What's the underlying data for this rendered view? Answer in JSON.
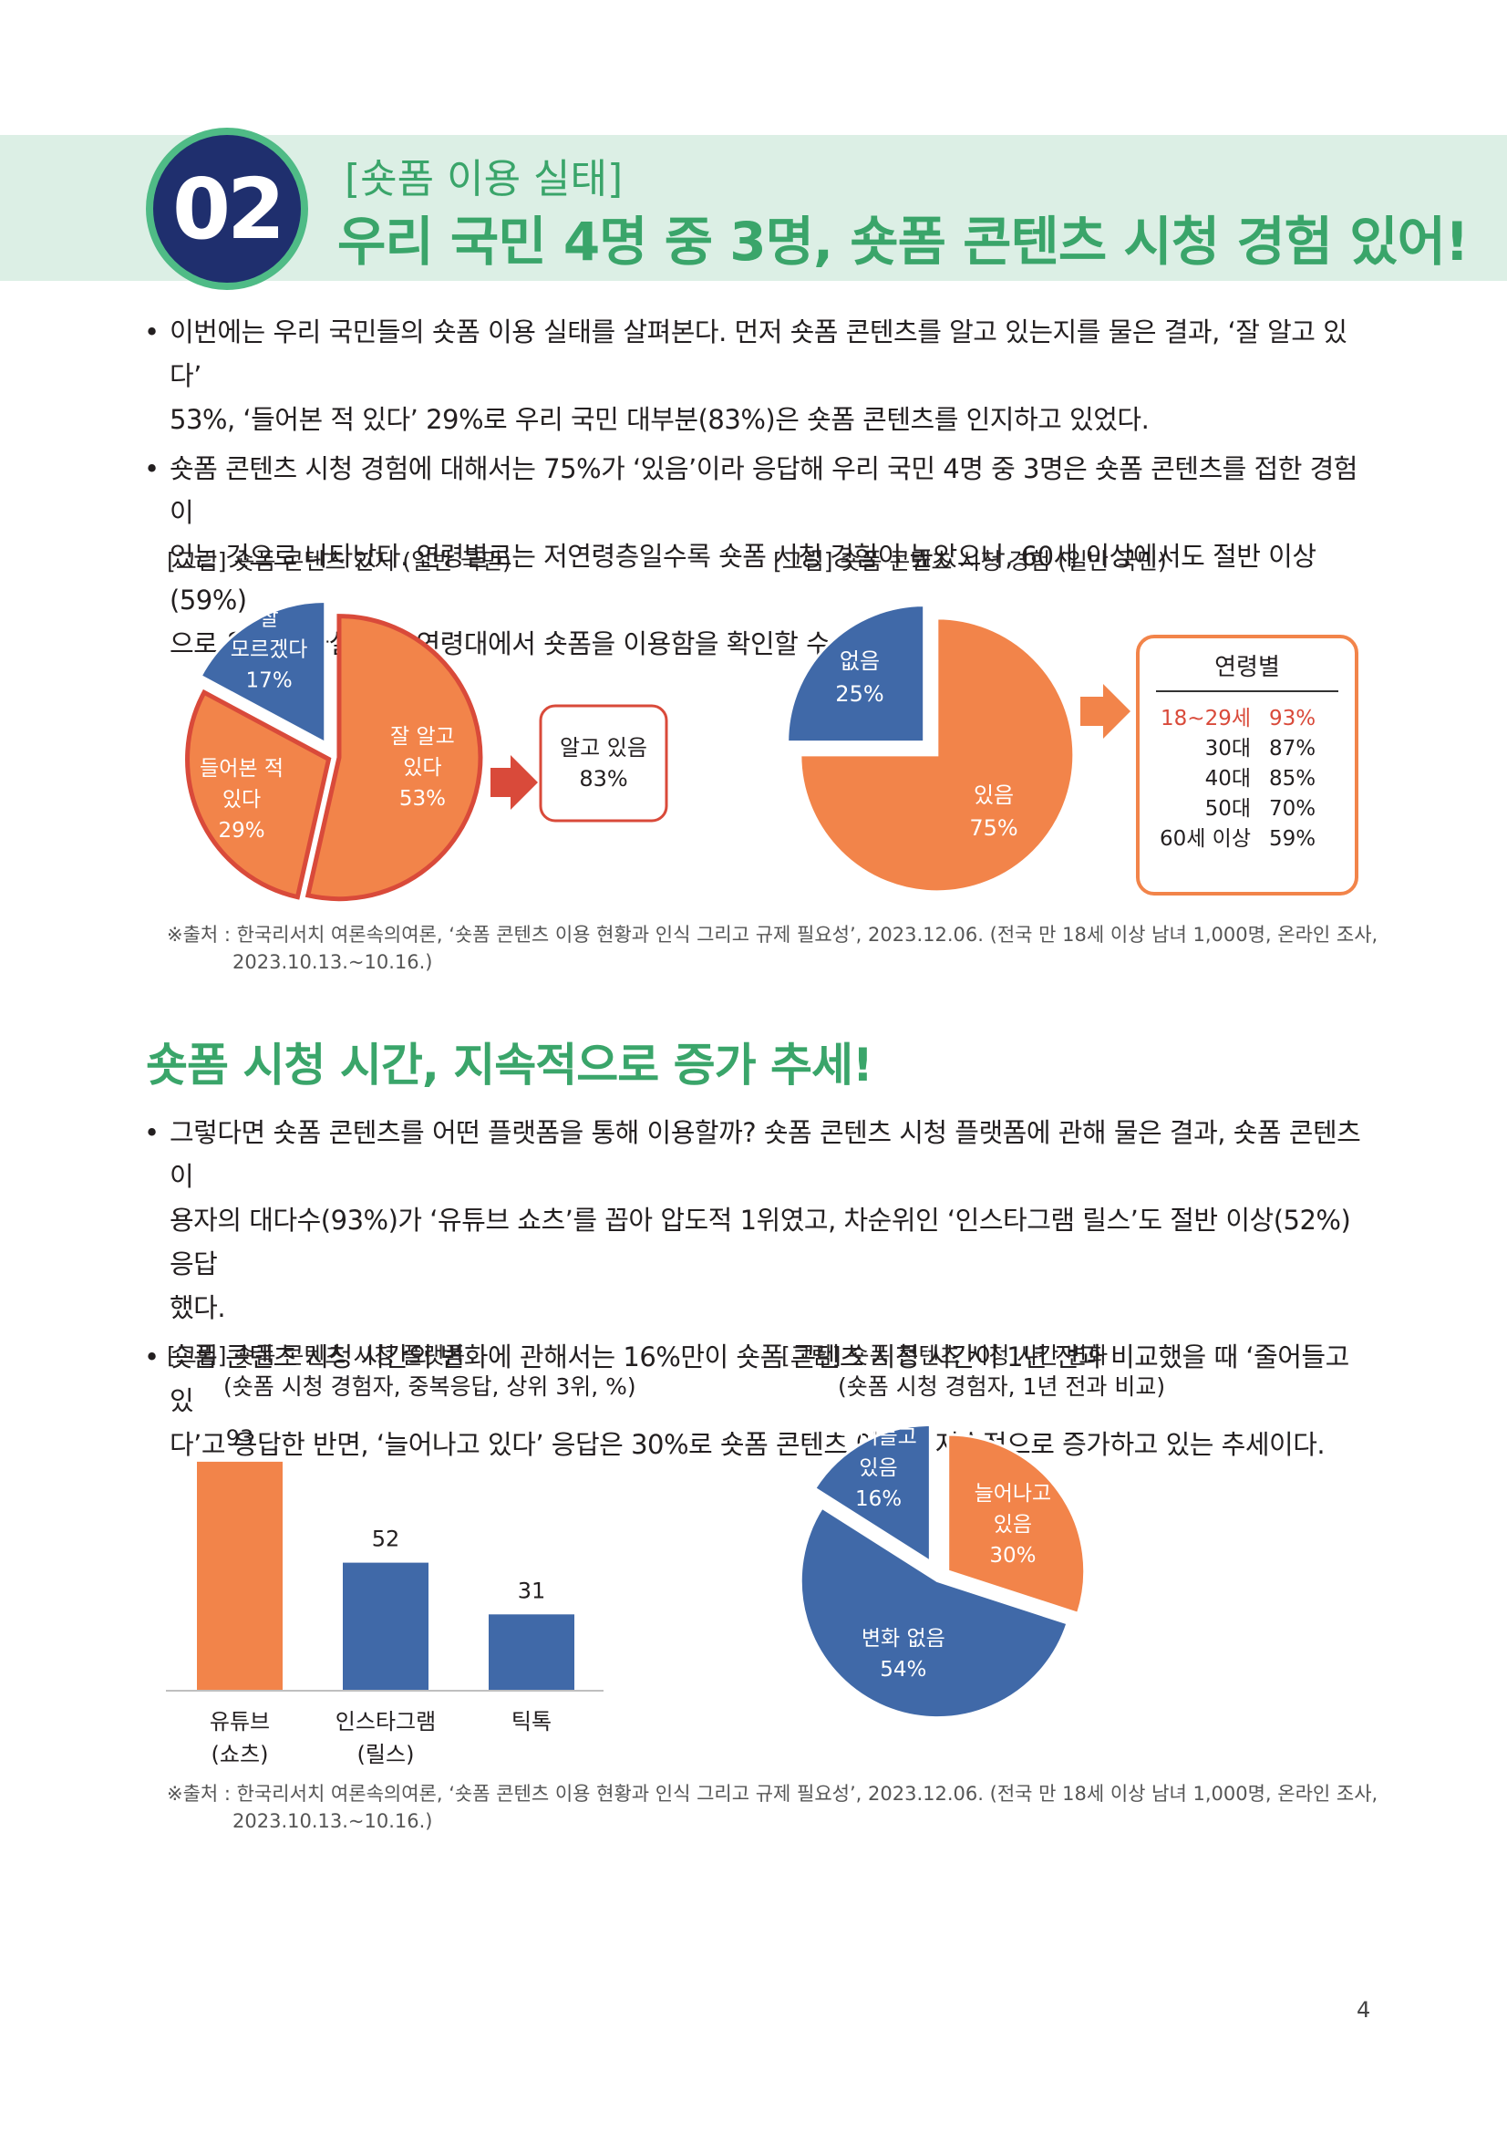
{
  "header": {
    "number": "02",
    "kicker": "[숏폼 이용 실태]",
    "headline": "우리 국민 4명 중 3명, 숏폼 콘텐츠 시청 경험 있어!"
  },
  "section1": {
    "bullets": [
      [
        "이번에는 우리 국민들의 숏폼 이용 실태를 살펴본다. 먼저 숏폼 콘텐츠를 알고 있는지를 물은 결과, ‘잘 알고 있다’",
        "53%, ‘들어본 적 있다’ 29%로 우리 국민 대부분(83%)은 숏폼 콘텐츠를 인지하고 있었다."
      ],
      [
        "숏폼 콘텐츠 시청 경험에 대해서는 75%가 ‘있음’이라 응답해 우리 국민 4명 중 3명은 숏폼 콘텐츠를 접한 경험이",
        "있는 것으로 나타났다. 연령별로는 저연령층일수록 숏폼 시청 경험이 높았으나, 60세 이상에서도 절반 이상(59%)",
        "으로 응답해 사실상 전 연령대에서 숏폼을 이용함을 확인할 수 있었다."
      ]
    ]
  },
  "fig1": {
    "caption": "[그림] 숏폼 콘텐츠 인지 (일반 국민)",
    "slices": [
      {
        "label": "잘 알고 있다",
        "lines": [
          "잘 알고",
          "있다",
          "53%"
        ],
        "value": 53,
        "color": "#f2844a"
      },
      {
        "label": "들어본 적 있다",
        "lines": [
          "들어본 적",
          "있다",
          "29%"
        ],
        "value": 29,
        "color": "#f2844a"
      },
      {
        "label": "잘 모르겠다",
        "lines": [
          "잘",
          "모르겠다",
          "17%"
        ],
        "value": 17,
        "color": "#4069a8"
      }
    ],
    "callout": {
      "lines": [
        "알고 있음",
        "83%"
      ]
    }
  },
  "fig2": {
    "caption": "[그림] 숏폼 콘텐츠 시청 경험 (일반 국민)",
    "slices": [
      {
        "label": "있음",
        "lines": [
          "있음",
          "75%"
        ],
        "value": 75,
        "color": "#f2844a"
      },
      {
        "label": "없음",
        "lines": [
          "없음",
          "25%"
        ],
        "value": 25,
        "color": "#4069a8"
      }
    ],
    "age_box": {
      "title": "연령별",
      "rows": [
        {
          "age": "18~29세",
          "pct": "93%",
          "highlight": true
        },
        {
          "age": "30대",
          "pct": "87%",
          "highlight": false
        },
        {
          "age": "40대",
          "pct": "85%",
          "highlight": false
        },
        {
          "age": "50대",
          "pct": "70%",
          "highlight": false
        },
        {
          "age": "60세 이상",
          "pct": "59%",
          "highlight": false
        }
      ]
    }
  },
  "source1": [
    "※출처 : 한국리서치 여론속의여론, ‘숏폼 콘텐츠 이용 현황과 인식 그리고 규제 필요성’, 2023.12.06. (전국 만 18세 이상 남녀 1,000명, 온라인 조사,",
    "2023.10.13.~10.16.)"
  ],
  "section2": {
    "title": "숏폼 시청 시간, 지속적으로 증가 추세!",
    "bullets": [
      [
        "그렇다면 숏폼 콘텐츠를 어떤 플랫폼을 통해 이용할까? 숏폼 콘텐츠 시청 플랫폼에 관해 물은 결과, 숏폼 콘텐츠 이",
        "용자의 대다수(93%)가 ‘유튜브 쇼츠’를 꼽아 압도적 1위였고, 차순위인 ‘인스타그램 릴스’도 절반 이상(52%) 응답",
        "했다."
      ],
      [
        "숏폼 콘텐츠 시청 시간의 변화에 관해서는 16%만이 숏폼 콘텐츠 시청 시간이 1년 전과 비교했을 때 ‘줄어들고 있",
        "다’고 응답한 반면, ‘늘어나고 있다’ 응답은 30%로 숏폼 콘텐츠 이용이 지속적으로 증가하고 있는 추세이다."
      ]
    ]
  },
  "fig3": {
    "caption": [
      "[그림] 숏폼 콘텐츠 시청 플랫폼",
      "(숏폼 시청 경험자, 중복응답, 상위 3위, %)"
    ]
  },
  "fig4": {
    "caption": [
      "[그림] 숏폼 콘텐츠 시청 시간 변화",
      "(숏폼 시청 경험자, 1년 전과 비교)"
    ],
    "slices": [
      {
        "label": "늘어나고 있음",
        "lines": [
          "늘어나고",
          "있음",
          "30%"
        ],
        "value": 30,
        "color": "#f2844a"
      },
      {
        "label": "변화 없음",
        "lines": [
          "변화 없음",
          "54%"
        ],
        "value": 54,
        "color": "#4069a8"
      },
      {
        "label": "줄어들고 있음",
        "lines": [
          "줄어들고",
          "있음",
          "16%"
        ],
        "value": 16,
        "color": "#4069a8"
      }
    ]
  },
  "chart_data": [
    {
      "type": "bar",
      "categories": [
        "유튜브 (쇼츠)",
        "인스타그램 (릴스)",
        "틱톡"
      ],
      "category_lines": [
        [
          "유튜브",
          "(쇼츠)"
        ],
        [
          "인스타그램",
          "(릴스)"
        ],
        [
          "틱톡"
        ]
      ],
      "values": [
        93,
        52,
        31
      ],
      "colors": [
        "#f2844a",
        "#4069a8",
        "#4069a8"
      ],
      "title": "[그림] 숏폼 콘텐츠 시청 플랫폼",
      "subtitle": "(숏폼 시청 경험자, 중복응답, 상위 3위, %)",
      "ylim": [
        0,
        100
      ]
    },
    {
      "type": "pie",
      "title": "[그림] 숏폼 콘텐츠 인지 (일반 국민)",
      "categories": [
        "잘 알고 있다",
        "들어본 적 있다",
        "잘 모르겠다"
      ],
      "values": [
        53,
        29,
        17
      ]
    },
    {
      "type": "pie",
      "title": "[그림] 숏폼 콘텐츠 시청 경험 (일반 국민)",
      "categories": [
        "있음",
        "없음"
      ],
      "values": [
        75,
        25
      ]
    },
    {
      "type": "pie",
      "title": "[그림] 숏폼 콘텐츠 시청 시간 변화",
      "subtitle": "(숏폼 시청 경험자, 1년 전과 비교)",
      "categories": [
        "늘어나고 있음",
        "변화 없음",
        "줄어들고 있음"
      ],
      "values": [
        30,
        54,
        16
      ]
    }
  ],
  "source2": [
    "※출처 : 한국리서치 여론속의여론, ‘숏폼 콘텐츠 이용 현황과 인식 그리고 규제 필요성’, 2023.12.06. (전국 만 18세 이상 남녀 1,000명, 온라인 조사,",
    "2023.10.13.~10.16.)"
  ],
  "page_number": "4"
}
